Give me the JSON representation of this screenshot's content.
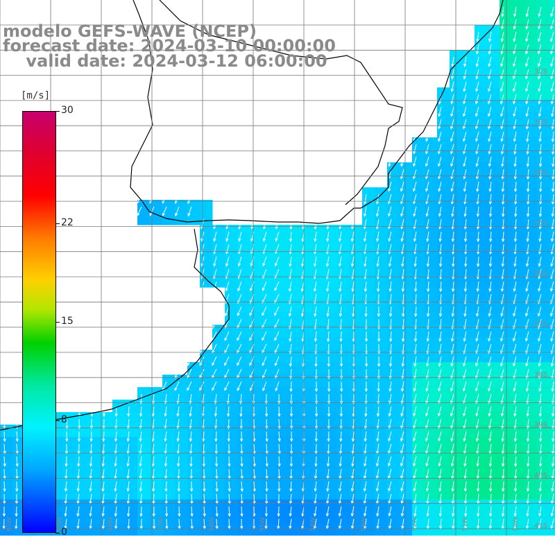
{
  "title": {
    "line1": "modelo GEFS-WAVE (NCEP)",
    "line2": "forecast date: 2024-03-10 00:00:00",
    "line3": "    valid date: 2024-03-12 06:00:00"
  },
  "colorbar": {
    "unit": "[m/s]",
    "ticks": [
      {
        "label": "30",
        "value": 30
      },
      {
        "label": "22",
        "value": 22
      },
      {
        "label": "15",
        "value": 15
      },
      {
        "label": "8",
        "value": 8
      },
      {
        "label": "0",
        "value": 0
      }
    ],
    "colors": {
      "0": "#0000ff",
      "4": "#0078ff",
      "8": "#00f2ff",
      "12": "#00d000",
      "16": "#ffd000",
      "20": "#ff7a00",
      "24": "#ff0000",
      "30": "#c8006e"
    }
  },
  "map": {
    "lat_labels": [
      "32S",
      "33S",
      "34S",
      "35S",
      "36S",
      "37S",
      "38S",
      "39S",
      "40S",
      "41S"
    ],
    "lon_labels": [
      "60W",
      "59W",
      "58W",
      "57W",
      "56W",
      "55W",
      "54W",
      "53W",
      "52W",
      "51W",
      "50W"
    ],
    "land_color": "#ffffff",
    "grid_color": "#777777",
    "arrow_color": "#ffffff",
    "wind_direction": "north-northeast wind (arrows pointing SSW)"
  }
}
